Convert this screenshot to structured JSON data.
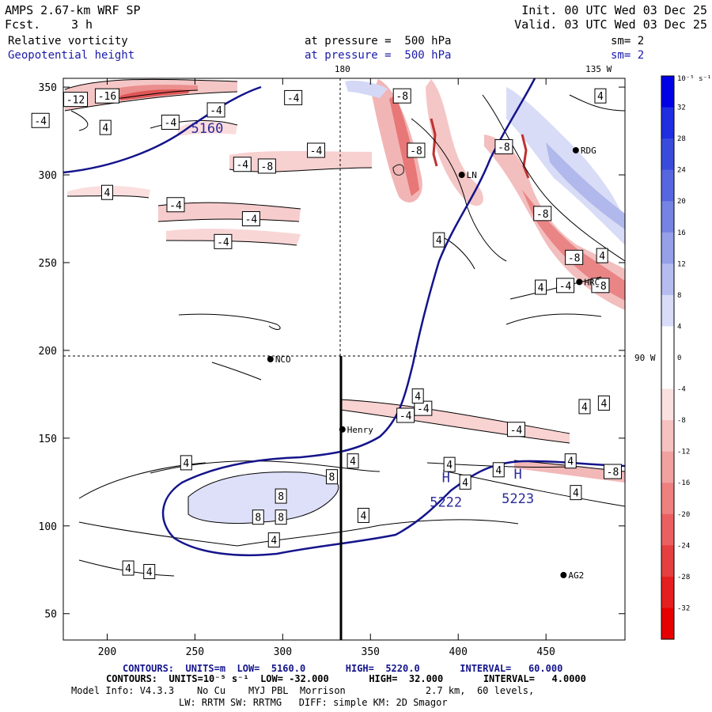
{
  "header": {
    "model": "AMPS 2.67-km WRF SP",
    "fcst_label": "Fcst.",
    "fcst_value": "3 h",
    "init": "Init. 00 UTC Wed 03 Dec 25",
    "valid": "Valid. 03 UTC Wed 03 Dec 25",
    "field1": "Relative vorticity",
    "field2": "Geopotential height",
    "pressure1": "at pressure =  500 hPa",
    "pressure2": "at pressure =  500 hPa",
    "sm1": "sm= 2",
    "sm2": "sm= 2"
  },
  "footer": {
    "line1": "CONTOURS:  UNITS=m  LOW=  5160.0       HIGH=  5220.0       INTERVAL=   60.000",
    "line2": "CONTOURS:  UNITS=10⁻⁵ s⁻¹  LOW= -32.000       HIGH=  32.000       INTERVAL=   4.0000",
    "line3": "Model Info: V4.3.3    No Cu    MYJ PBL  Morrison              2.7 km,  60 levels,",
    "line4": "LW: RRTM SW: RRTMG   DIFF: simple KM: 2D Smagor"
  },
  "chart_data": {
    "type": "contour",
    "xlim": [
      175,
      495
    ],
    "ylim": [
      35,
      355
    ],
    "x_ticks": [
      200,
      250,
      300,
      350,
      400,
      450
    ],
    "y_ticks": [
      50,
      100,
      150,
      200,
      250,
      300,
      350
    ],
    "grid_annotations": [
      {
        "text": "180",
        "x": 334,
        "y": 355
      },
      {
        "text": "135 W",
        "x": 480,
        "y": 355
      },
      {
        "text": "90 W",
        "x": 495,
        "y": 196
      }
    ],
    "crosshair": {
      "x": 334,
      "y": 196
    },
    "cross_section_line": {
      "x": 334,
      "y0": 35,
      "y1": 196
    },
    "colorbar": {
      "unit_label": "10⁻⁵ s⁻¹",
      "ticks": [
        32,
        28,
        24,
        20,
        16,
        12,
        8,
        4,
        0,
        -4,
        -8,
        -12,
        -16,
        -20,
        -24,
        -28,
        -32
      ]
    },
    "stations": [
      {
        "name": "NCO",
        "x": 293,
        "y": 195
      },
      {
        "name": "Henry",
        "x": 334,
        "y": 155
      },
      {
        "name": "RDG",
        "x": 467,
        "y": 314
      },
      {
        "name": "HRC",
        "x": 469,
        "y": 239
      },
      {
        "name": "AG2",
        "x": 460,
        "y": 72
      },
      {
        "name": "LN",
        "x": 402,
        "y": 300
      }
    ],
    "height_labels": [
      {
        "text": "5160",
        "x": 257,
        "y": 324
      },
      {
        "text": "H",
        "x": 393,
        "y": 125
      },
      {
        "text": "5222",
        "x": 393,
        "y": 111
      },
      {
        "text": "H",
        "x": 434,
        "y": 127
      },
      {
        "text": "5223",
        "x": 434,
        "y": 113
      }
    ],
    "vorticity_labels": [
      {
        "text": "-12",
        "x": 182,
        "y": 343
      },
      {
        "text": "-16",
        "x": 200,
        "y": 345
      },
      {
        "text": "-4",
        "x": 162,
        "y": 331
      },
      {
        "text": "4",
        "x": 199,
        "y": 327
      },
      {
        "text": "-4",
        "x": 236,
        "y": 330
      },
      {
        "text": "-4",
        "x": 262,
        "y": 337
      },
      {
        "text": "-4",
        "x": 306,
        "y": 344
      },
      {
        "text": "-8",
        "x": 368,
        "y": 345
      },
      {
        "text": "4",
        "x": 481,
        "y": 345
      },
      {
        "text": "-4",
        "x": 319,
        "y": 314
      },
      {
        "text": "-8",
        "x": 376,
        "y": 314
      },
      {
        "text": "-8",
        "x": 426,
        "y": 316
      },
      {
        "text": "-4",
        "x": 277,
        "y": 306
      },
      {
        "text": "-8",
        "x": 291,
        "y": 305
      },
      {
        "text": "4",
        "x": 200,
        "y": 290
      },
      {
        "text": "-4",
        "x": 239,
        "y": 283
      },
      {
        "text": "-4",
        "x": 282,
        "y": 275
      },
      {
        "text": "-4",
        "x": 266,
        "y": 262
      },
      {
        "text": "-8",
        "x": 448,
        "y": 278
      },
      {
        "text": "4",
        "x": 389,
        "y": 263
      },
      {
        "text": "-8",
        "x": 466,
        "y": 253
      },
      {
        "text": "4",
        "x": 482,
        "y": 254
      },
      {
        "text": "4",
        "x": 447,
        "y": 236
      },
      {
        "text": "-4",
        "x": 461,
        "y": 237
      },
      {
        "text": "-8",
        "x": 481,
        "y": 237
      },
      {
        "text": "-4",
        "x": 370,
        "y": 163
      },
      {
        "text": "-4",
        "x": 380,
        "y": 167
      },
      {
        "text": "-4",
        "x": 433,
        "y": 155
      },
      {
        "text": "4",
        "x": 377,
        "y": 174
      },
      {
        "text": "4",
        "x": 483,
        "y": 170
      },
      {
        "text": "4",
        "x": 472,
        "y": 168
      },
      {
        "text": "4",
        "x": 245,
        "y": 136
      },
      {
        "text": "4",
        "x": 340,
        "y": 137
      },
      {
        "text": "8",
        "x": 328,
        "y": 128
      },
      {
        "text": "8",
        "x": 299,
        "y": 117
      },
      {
        "text": "8",
        "x": 286,
        "y": 105
      },
      {
        "text": "8",
        "x": 299,
        "y": 105
      },
      {
        "text": "4",
        "x": 395,
        "y": 135
      },
      {
        "text": "4",
        "x": 404,
        "y": 125
      },
      {
        "text": "4",
        "x": 423,
        "y": 132
      },
      {
        "text": "4",
        "x": 464,
        "y": 137
      },
      {
        "text": "-8",
        "x": 488,
        "y": 131
      },
      {
        "text": "4",
        "x": 467,
        "y": 119
      },
      {
        "text": "4",
        "x": 346,
        "y": 106
      },
      {
        "text": "4",
        "x": 295,
        "y": 92
      },
      {
        "text": "4",
        "x": 212,
        "y": 76
      },
      {
        "text": "4",
        "x": 224,
        "y": 74
      }
    ]
  }
}
